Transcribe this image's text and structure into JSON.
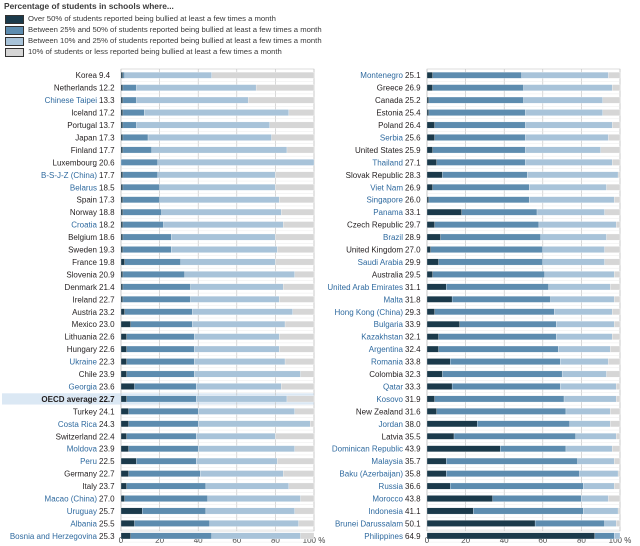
{
  "header": {
    "title": "Percentage of students in schools where..."
  },
  "colors": {
    "over50": "#1b3a4b",
    "p25to50": "#5d8caf",
    "p10to25": "#a8c3d9",
    "upto10": "#d6d6d6",
    "oecd_highlight": "#dbe8f4",
    "non_member_label": "#2f6a9f"
  },
  "chart_data": {
    "type": "bar",
    "orientation": "horizontal",
    "stacked": true,
    "title": "Percentage of students in schools where...",
    "xlim": [
      0,
      100
    ],
    "x_ticks": [
      "0",
      "20",
      "40",
      "60",
      "80",
      "100 %"
    ],
    "grid": true,
    "legend_position": "top-left",
    "series": [
      {
        "key": "over50",
        "name": "Over 50% of students reported being bullied at least a few times a month"
      },
      {
        "key": "p25to50",
        "name": "Between 25% and 50% of students reported being bullied at least a few times a month"
      },
      {
        "key": "p10to25",
        "name": "Between 10% and 25% of students reported being bullied at least a few times a month"
      },
      {
        "key": "upto10",
        "name": "10% of students or less reported being bullied at least a few times a month"
      }
    ],
    "panels": [
      {
        "name": "left",
        "rows": [
          {
            "country": "Korea",
            "value": "9.4",
            "non_member": false,
            "segments": [
              1,
              1,
              45,
              53
            ]
          },
          {
            "country": "Netherlands",
            "value": "12.2",
            "non_member": false,
            "segments": [
              1,
              7,
              62,
              30
            ]
          },
          {
            "country": "Chinese Taipei",
            "value": "13.3",
            "non_member": true,
            "segments": [
              1,
              7,
              58,
              34
            ]
          },
          {
            "country": "Iceland",
            "value": "17.2",
            "non_member": false,
            "segments": [
              1,
              11,
              75,
              13
            ]
          },
          {
            "country": "Portugal",
            "value": "13.7",
            "non_member": false,
            "segments": [
              1,
              7,
              69,
              23
            ]
          },
          {
            "country": "Japan",
            "value": "17.3",
            "non_member": false,
            "segments": [
              1,
              13,
              64,
              22
            ]
          },
          {
            "country": "Finland",
            "value": "17.7",
            "non_member": false,
            "segments": [
              1,
              15,
              70,
              14
            ]
          },
          {
            "country": "Luxembourg",
            "value": "20.6",
            "non_member": false,
            "segments": [
              0,
              19,
              81,
              0
            ]
          },
          {
            "country": "B-S-J-Z (China)",
            "value": "17.7",
            "non_member": true,
            "segments": [
              1,
              18,
              61,
              20
            ]
          },
          {
            "country": "Belarus",
            "value": "18.5",
            "non_member": true,
            "segments": [
              1,
              19,
              60,
              20
            ]
          },
          {
            "country": "Spain",
            "value": "17.3",
            "non_member": false,
            "segments": [
              1,
              19,
              62,
              18
            ]
          },
          {
            "country": "Norway",
            "value": "18.8",
            "non_member": false,
            "segments": [
              1,
              20,
              62,
              17
            ]
          },
          {
            "country": "Croatia",
            "value": "18.2",
            "non_member": true,
            "segments": [
              1,
              21,
              62,
              16
            ]
          },
          {
            "country": "Belgium",
            "value": "18.6",
            "non_member": false,
            "segments": [
              1,
              25,
              54,
              20
            ]
          },
          {
            "country": "Sweden",
            "value": "19.3",
            "non_member": false,
            "segments": [
              1,
              25,
              55,
              19
            ]
          },
          {
            "country": "France",
            "value": "19.8",
            "non_member": false,
            "segments": [
              2,
              29,
              49,
              20
            ]
          },
          {
            "country": "Slovenia",
            "value": "20.9",
            "non_member": false,
            "segments": [
              1,
              32,
              57,
              10
            ]
          },
          {
            "country": "Denmark",
            "value": "21.4",
            "non_member": false,
            "segments": [
              1,
              35,
              48,
              16
            ]
          },
          {
            "country": "Ireland",
            "value": "22.7",
            "non_member": false,
            "segments": [
              1,
              35,
              46,
              18
            ]
          },
          {
            "country": "Austria",
            "value": "23.2",
            "non_member": false,
            "segments": [
              2,
              35,
              52,
              11
            ]
          },
          {
            "country": "Mexico",
            "value": "23.0",
            "non_member": false,
            "segments": [
              5,
              32,
              48,
              15
            ]
          },
          {
            "country": "Lithuania",
            "value": "22.6",
            "non_member": false,
            "segments": [
              3,
              35,
              44,
              18
            ]
          },
          {
            "country": "Hungary",
            "value": "22.6",
            "non_member": false,
            "segments": [
              3,
              35,
              44,
              18
            ]
          },
          {
            "country": "Ukraine",
            "value": "22.3",
            "non_member": true,
            "segments": [
              3,
              35,
              47,
              15
            ]
          },
          {
            "country": "Chile",
            "value": "23.9",
            "non_member": false,
            "segments": [
              3,
              35,
              55,
              7
            ]
          },
          {
            "country": "Georgia",
            "value": "23.6",
            "non_member": true,
            "segments": [
              7,
              32,
              44,
              17
            ]
          },
          {
            "country": "OECD average",
            "value": "22.7",
            "non_member": false,
            "oecd": true,
            "segments": [
              3,
              36,
              47,
              14
            ]
          },
          {
            "country": "Turkey",
            "value": "24.1",
            "non_member": false,
            "segments": [
              4,
              36,
              50,
              10
            ]
          },
          {
            "country": "Costa Rica",
            "value": "24.3",
            "non_member": true,
            "segments": [
              4,
              36,
              58,
              2
            ]
          },
          {
            "country": "Switzerland",
            "value": "22.4",
            "non_member": false,
            "segments": [
              3,
              36,
              41,
              20
            ]
          },
          {
            "country": "Moldova",
            "value": "23.9",
            "non_member": true,
            "segments": [
              4,
              36,
              50,
              10
            ]
          },
          {
            "country": "Peru",
            "value": "22.5",
            "non_member": true,
            "segments": [
              8,
              31,
              42,
              19
            ]
          },
          {
            "country": "Germany",
            "value": "22.7",
            "non_member": false,
            "segments": [
              4,
              37,
              43,
              16
            ]
          },
          {
            "country": "Italy",
            "value": "23.7",
            "non_member": false,
            "segments": [
              3,
              41,
              43,
              13
            ]
          },
          {
            "country": "Macao (China)",
            "value": "27.0",
            "non_member": true,
            "segments": [
              2,
              43,
              48,
              7
            ]
          },
          {
            "country": "Uruguay",
            "value": "25.7",
            "non_member": true,
            "segments": [
              11,
              33,
              46,
              10
            ]
          },
          {
            "country": "Albania",
            "value": "25.5",
            "non_member": true,
            "segments": [
              7,
              39,
              46,
              8
            ]
          },
          {
            "country": "Bosnia and Herzegovina",
            "value": "25.3",
            "non_member": true,
            "segments": [
              5,
              42,
              46,
              7
            ]
          }
        ]
      },
      {
        "name": "right",
        "rows": [
          {
            "country": "Montenegro",
            "value": "25.1",
            "non_member": true,
            "segments": [
              3,
              46,
              45,
              6
            ]
          },
          {
            "country": "Greece",
            "value": "26.9",
            "non_member": false,
            "segments": [
              3,
              47,
              46,
              4
            ]
          },
          {
            "country": "Canada",
            "value": "25.2",
            "non_member": false,
            "segments": [
              1,
              49,
              41,
              9
            ]
          },
          {
            "country": "Estonia",
            "value": "25.4",
            "non_member": false,
            "segments": [
              1,
              50,
              40,
              9
            ]
          },
          {
            "country": "Poland",
            "value": "26.4",
            "non_member": false,
            "segments": [
              4,
              47,
              45,
              4
            ]
          },
          {
            "country": "Serbia",
            "value": "25.6",
            "non_member": true,
            "segments": [
              4,
              47,
              43,
              6
            ]
          },
          {
            "country": "United States",
            "value": "25.9",
            "non_member": false,
            "segments": [
              3,
              48,
              39,
              10
            ]
          },
          {
            "country": "Thailand",
            "value": "27.1",
            "non_member": true,
            "segments": [
              5,
              46,
              45,
              4
            ]
          },
          {
            "country": "Slovak Republic",
            "value": "28.3",
            "non_member": false,
            "segments": [
              8,
              44,
              47,
              1
            ]
          },
          {
            "country": "Viet Nam",
            "value": "26.9",
            "non_member": true,
            "segments": [
              3,
              50,
              40,
              7
            ]
          },
          {
            "country": "Singapore",
            "value": "26.0",
            "non_member": true,
            "segments": [
              1,
              52,
              44,
              3
            ]
          },
          {
            "country": "Panama",
            "value": "33.1",
            "non_member": true,
            "segments": [
              18,
              39,
              35,
              8
            ]
          },
          {
            "country": "Czech Republic",
            "value": "29.7",
            "non_member": false,
            "segments": [
              4,
              54,
              40,
              2
            ]
          },
          {
            "country": "Brazil",
            "value": "28.9",
            "non_member": true,
            "segments": [
              7,
              52,
              34,
              7
            ]
          },
          {
            "country": "United Kingdom",
            "value": "27.0",
            "non_member": false,
            "segments": [
              2,
              58,
              32,
              8
            ]
          },
          {
            "country": "Saudi Arabia",
            "value": "29.9",
            "non_member": true,
            "segments": [
              6,
              54,
              32,
              8
            ]
          },
          {
            "country": "Australia",
            "value": "29.5",
            "non_member": false,
            "segments": [
              3,
              58,
              36,
              3
            ]
          },
          {
            "country": "United Arab Emirates",
            "value": "31.1",
            "non_member": true,
            "segments": [
              10,
              53,
              32,
              5
            ]
          },
          {
            "country": "Malta",
            "value": "31.8",
            "non_member": true,
            "segments": [
              13,
              51,
              33,
              3
            ]
          },
          {
            "country": "Hong Kong (China)",
            "value": "29.3",
            "non_member": true,
            "segments": [
              4,
              62,
              30,
              4
            ]
          },
          {
            "country": "Bulgaria",
            "value": "33.9",
            "non_member": true,
            "segments": [
              17,
              50,
              30,
              3
            ]
          },
          {
            "country": "Kazakhstan",
            "value": "32.1",
            "non_member": true,
            "segments": [
              6,
              61,
              29,
              4
            ]
          },
          {
            "country": "Argentina",
            "value": "32.4",
            "non_member": true,
            "segments": [
              6,
              62,
              27,
              5
            ]
          },
          {
            "country": "Romania",
            "value": "33.8",
            "non_member": true,
            "segments": [
              12,
              57,
              25,
              6
            ]
          },
          {
            "country": "Colombia",
            "value": "32.3",
            "non_member": false,
            "segments": [
              8,
              62,
              23,
              7
            ]
          },
          {
            "country": "Qatar",
            "value": "33.3",
            "non_member": true,
            "segments": [
              13,
              56,
              29,
              2
            ]
          },
          {
            "country": "Kosovo",
            "value": "31.9",
            "non_member": true,
            "segments": [
              4,
              67,
              27,
              2
            ]
          },
          {
            "country": "New Zealand",
            "value": "31.6",
            "non_member": false,
            "segments": [
              5,
              67,
              23,
              5
            ]
          },
          {
            "country": "Jordan",
            "value": "38.0",
            "non_member": true,
            "segments": [
              26,
              48,
              21,
              5
            ]
          },
          {
            "country": "Latvia",
            "value": "35.5",
            "non_member": false,
            "segments": [
              14,
              63,
              21,
              2
            ]
          },
          {
            "country": "Dominican Republic",
            "value": "43.9",
            "non_member": true,
            "segments": [
              38,
              34,
              24,
              4
            ]
          },
          {
            "country": "Malaysia",
            "value": "35.7",
            "non_member": true,
            "segments": [
              10,
              68,
              19,
              3
            ]
          },
          {
            "country": "Baku (Azerbaijan)",
            "value": "35.8",
            "non_member": true,
            "segments": [
              10,
              69,
              20,
              1
            ]
          },
          {
            "country": "Russia",
            "value": "36.6",
            "non_member": true,
            "segments": [
              12,
              69,
              16,
              3
            ]
          },
          {
            "country": "Morocco",
            "value": "43.8",
            "non_member": true,
            "segments": [
              34,
              46,
              14,
              6
            ]
          },
          {
            "country": "Indonesia",
            "value": "41.1",
            "non_member": true,
            "segments": [
              24,
              57,
              18,
              1
            ]
          },
          {
            "country": "Brunei Darussalam",
            "value": "50.1",
            "non_member": true,
            "segments": [
              56,
              36,
              6,
              2
            ]
          },
          {
            "country": "Philippines",
            "value": "64.9",
            "non_member": true,
            "segments": [
              87,
              10,
              3,
              0
            ]
          }
        ]
      }
    ]
  }
}
